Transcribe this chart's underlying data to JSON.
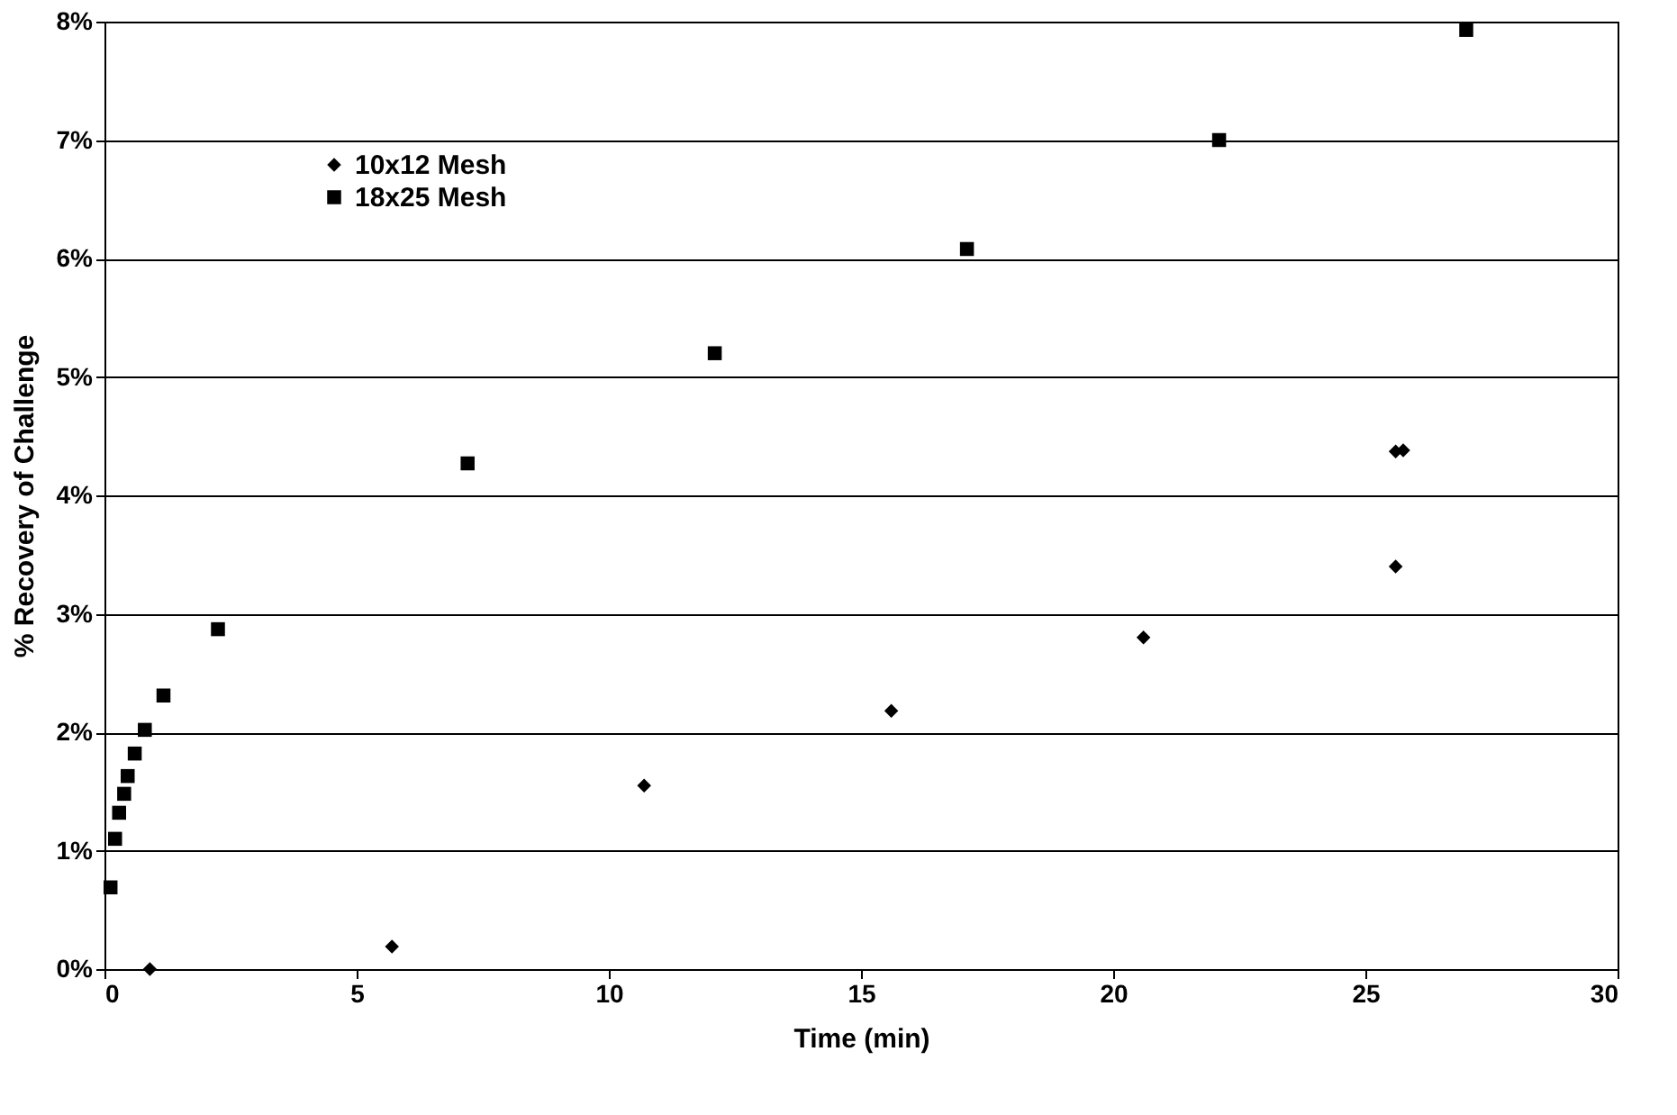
{
  "chart_data": {
    "type": "scatter",
    "xlabel": "Time (min)",
    "ylabel": "% Recovery of Challenge",
    "xlim": [
      0,
      30
    ],
    "xticks": [
      0,
      5,
      10,
      15,
      20,
      25,
      30
    ],
    "ylim": [
      0,
      8
    ],
    "yticks": [
      {
        "value": 0,
        "label": "0%"
      },
      {
        "value": 1,
        "label": "1%"
      },
      {
        "value": 2,
        "label": "2%"
      },
      {
        "value": 3,
        "label": "3%"
      },
      {
        "value": 4,
        "label": "4%"
      },
      {
        "value": 5,
        "label": "5%"
      },
      {
        "value": 6,
        "label": "6%"
      },
      {
        "value": 7,
        "label": "7%"
      },
      {
        "value": 8,
        "label": "8%"
      }
    ],
    "grid": "y",
    "legend": "top left",
    "series": [
      {
        "name": "10x12 Mesh",
        "color": "#000000",
        "marker": "diamond",
        "x": [
          0.9,
          5.7,
          10.7,
          15.6,
          20.6,
          25.6,
          25.6,
          25.75
        ],
        "values": [
          0.0,
          0.19,
          1.55,
          2.18,
          2.8,
          3.4,
          4.37,
          4.38
        ]
      },
      {
        "name": "18x25 Mesh",
        "color": "#000000",
        "marker": "square",
        "x": [
          0.12,
          0.21,
          0.29,
          0.39,
          0.46,
          0.6,
          0.8,
          1.17,
          2.25,
          7.2,
          12.1,
          17.1,
          22.1,
          27.0
        ],
        "values": [
          0.69,
          1.1,
          1.32,
          1.48,
          1.63,
          1.82,
          2.02,
          2.31,
          2.87,
          4.27,
          5.2,
          6.08,
          7.0,
          7.93
        ]
      }
    ]
  }
}
